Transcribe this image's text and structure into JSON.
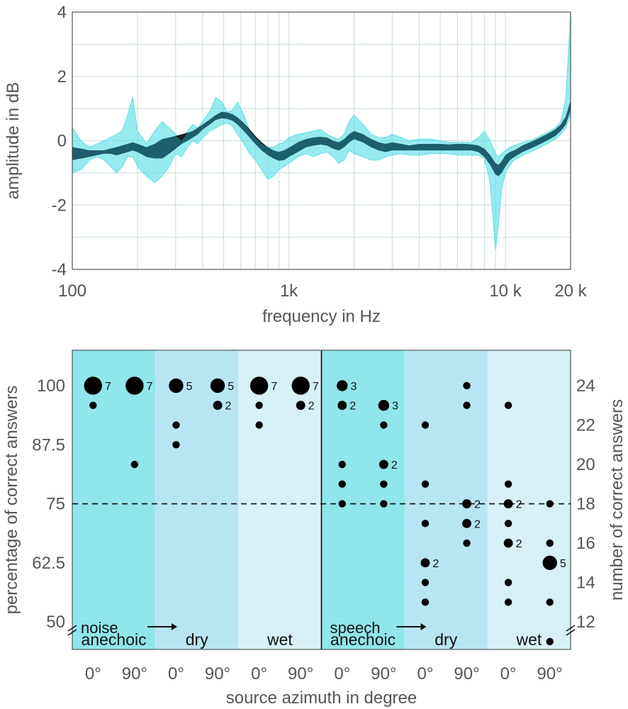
{
  "chart_data": [
    {
      "type": "line",
      "title": "",
      "xlabel": "frequency in Hz",
      "ylabel": "amplitude in dB",
      "xscale": "log",
      "xlim": [
        100,
        20000
      ],
      "ylim": [
        -4,
        4
      ],
      "grid": true,
      "x_ticks": [
        100,
        1000,
        10000,
        20000
      ],
      "x_tick_labels": [
        "100",
        "1k",
        "10 k",
        "20 k"
      ],
      "y_ticks": [
        -4,
        -2,
        0,
        2,
        4
      ],
      "y_tick_labels": [
        "-4",
        "-2",
        "0",
        "2",
        "4"
      ],
      "x": [
        100,
        110,
        120,
        130,
        140,
        150,
        160,
        170,
        180,
        190,
        200,
        220,
        240,
        260,
        280,
        300,
        320,
        340,
        360,
        380,
        400,
        430,
        460,
        490,
        520,
        550,
        580,
        620,
        660,
        700,
        750,
        800,
        850,
        900,
        950,
        1000,
        1100,
        1200,
        1300,
        1400,
        1500,
        1600,
        1700,
        1800,
        1900,
        2000,
        2200,
        2400,
        2600,
        2800,
        3000,
        3300,
        3600,
        4000,
        4500,
        5000,
        5500,
        6000,
        6500,
        7000,
        7500,
        8000,
        8500,
        9000,
        9300,
        9600,
        10000,
        10500,
        11000,
        12000,
        13000,
        14000,
        15000,
        16000,
        17000,
        18000,
        19000,
        20000
      ],
      "series": [
        {
          "color": "#111111",
          "upper": [
            -0.2,
            -0.25,
            -0.3,
            -0.3,
            -0.3,
            -0.25,
            -0.2,
            -0.15,
            -0.1,
            -0.05,
            -0.1,
            -0.2,
            -0.1,
            0.05,
            0.1,
            0.15,
            0.2,
            0.25,
            0.3,
            0.4,
            0.5,
            0.65,
            0.8,
            0.9,
            0.88,
            0.82,
            0.72,
            0.55,
            0.35,
            0.15,
            -0.05,
            -0.2,
            -0.3,
            -0.35,
            -0.3,
            -0.22,
            -0.05,
            0.05,
            0.1,
            0.12,
            0.1,
            0.0,
            -0.05,
            0.05,
            0.2,
            0.3,
            0.2,
            0.05,
            -0.05,
            -0.1,
            -0.05,
            -0.1,
            -0.15,
            -0.1,
            -0.1,
            -0.1,
            -0.12,
            -0.1,
            -0.1,
            -0.12,
            -0.15,
            -0.25,
            -0.45,
            -0.7,
            -0.75,
            -0.65,
            -0.45,
            -0.35,
            -0.3,
            -0.15,
            -0.05,
            0.05,
            0.15,
            0.25,
            0.35,
            0.5,
            0.75,
            1.25
          ],
          "lower": [
            -0.6,
            -0.55,
            -0.5,
            -0.45,
            -0.4,
            -0.4,
            -0.45,
            -0.4,
            -0.35,
            -0.3,
            -0.35,
            -0.5,
            -0.55,
            -0.55,
            -0.4,
            -0.25,
            -0.1,
            0.0,
            0.1,
            0.2,
            0.35,
            0.5,
            0.65,
            0.7,
            0.68,
            0.62,
            0.5,
            0.3,
            0.1,
            -0.1,
            -0.3,
            -0.45,
            -0.55,
            -0.62,
            -0.6,
            -0.5,
            -0.35,
            -0.2,
            -0.15,
            -0.12,
            -0.15,
            -0.25,
            -0.3,
            -0.2,
            -0.05,
            0.05,
            -0.05,
            -0.2,
            -0.3,
            -0.35,
            -0.3,
            -0.3,
            -0.3,
            -0.3,
            -0.3,
            -0.3,
            -0.3,
            -0.3,
            -0.3,
            -0.3,
            -0.35,
            -0.5,
            -0.75,
            -1.05,
            -1.1,
            -1.0,
            -0.8,
            -0.6,
            -0.5,
            -0.35,
            -0.25,
            -0.15,
            -0.05,
            0.05,
            0.15,
            0.3,
            0.5,
            0.95
          ]
        },
        {
          "color": "#5ee0e6",
          "upper": [
            0.4,
            0.0,
            -0.2,
            -0.1,
            0.0,
            0.1,
            0.2,
            0.3,
            0.8,
            1.35,
            0.3,
            -0.1,
            0.3,
            0.6,
            0.4,
            0.2,
            0.0,
            0.3,
            0.5,
            0.4,
            0.6,
            0.9,
            1.35,
            1.2,
            0.9,
            0.95,
            1.2,
            0.8,
            0.3,
            0.1,
            -0.1,
            -0.2,
            -0.2,
            -0.1,
            -0.05,
            0.1,
            0.2,
            0.25,
            0.3,
            0.35,
            0.2,
            0.1,
            0.05,
            0.2,
            0.6,
            0.8,
            0.5,
            0.2,
            0.1,
            0.1,
            0.2,
            0.1,
            0.0,
            0.05,
            0.05,
            0.0,
            -0.05,
            -0.05,
            -0.05,
            -0.05,
            0.1,
            0.3,
            0.0,
            -0.4,
            -0.5,
            -0.4,
            -0.3,
            -0.2,
            -0.15,
            -0.05,
            0.0,
            0.1,
            0.2,
            0.3,
            0.4,
            0.6,
            1.3,
            4.0
          ],
          "lower": [
            -1.0,
            -0.9,
            -0.6,
            -0.5,
            -0.6,
            -0.8,
            -1.0,
            -0.8,
            -0.5,
            -0.5,
            -0.8,
            -1.1,
            -1.3,
            -1.1,
            -0.8,
            -0.4,
            -0.5,
            -0.2,
            0.0,
            -0.1,
            0.1,
            0.3,
            0.4,
            0.5,
            0.55,
            0.45,
            0.2,
            -0.1,
            -0.4,
            -0.6,
            -0.9,
            -1.2,
            -1.1,
            -0.9,
            -0.8,
            -0.7,
            -0.5,
            -0.4,
            -0.5,
            -0.4,
            -0.35,
            -0.5,
            -0.7,
            -0.6,
            -0.3,
            -0.4,
            -0.5,
            -0.6,
            -0.6,
            -0.5,
            -0.45,
            -0.4,
            -0.45,
            -0.45,
            -0.4,
            -0.4,
            -0.4,
            -0.45,
            -0.45,
            -0.45,
            -0.45,
            -0.55,
            -1.3,
            -3.4,
            -2.6,
            -1.5,
            -1.0,
            -0.75,
            -0.6,
            -0.45,
            -0.35,
            -0.25,
            -0.15,
            -0.05,
            0.05,
            0.2,
            0.4,
            0.8
          ]
        }
      ]
    },
    {
      "type": "scatter",
      "title": "",
      "xlabel": "source azimuth in degree",
      "ylabel": "percentage of correct answers",
      "ylabel_right": "number of correct answers",
      "ylim": [
        10.6,
        25.8
      ],
      "y_ticks_left": [
        12,
        15,
        18,
        21,
        24
      ],
      "y_tick_labels_left": [
        "50",
        "62.5",
        "75",
        "87.5",
        "100"
      ],
      "y_ticks_right": [
        12,
        14,
        16,
        18,
        20,
        22,
        24
      ],
      "y_tick_labels_right": [
        "12",
        "14",
        "16",
        "18",
        "20",
        "22",
        "24"
      ],
      "reference_line": 18,
      "categories": [
        "0°",
        "90°",
        "0°",
        "90°",
        "0°",
        "90°",
        "0°",
        "90°",
        "0°",
        "90°",
        "0°",
        "90°"
      ],
      "stimuli": [
        {
          "name": "noise",
          "columns": [
            0,
            5
          ]
        },
        {
          "name": "speech",
          "columns": [
            6,
            11
          ]
        }
      ],
      "conditions": [
        {
          "name": "anechoic",
          "columns": [
            0,
            1
          ],
          "color": "#8fe6ec"
        },
        {
          "name": "dry",
          "columns": [
            2,
            3
          ],
          "color": "#b8e5f3"
        },
        {
          "name": "wet",
          "columns": [
            4,
            5
          ],
          "color": "#d6f1f5"
        },
        {
          "name": "anechoic",
          "columns": [
            6,
            7
          ],
          "color": "#8fe6ec"
        },
        {
          "name": "dry",
          "columns": [
            8,
            9
          ],
          "color": "#b8e5f3"
        },
        {
          "name": "wet",
          "columns": [
            10,
            11
          ],
          "color": "#d6f1f5"
        }
      ],
      "points": [
        {
          "col": 0,
          "y": 24,
          "n": 7
        },
        {
          "col": 0,
          "y": 23,
          "n": 1
        },
        {
          "col": 1,
          "y": 24,
          "n": 7
        },
        {
          "col": 1,
          "y": 20,
          "n": 1
        },
        {
          "col": 2,
          "y": 24,
          "n": 5
        },
        {
          "col": 2,
          "y": 22,
          "n": 1
        },
        {
          "col": 2,
          "y": 21,
          "n": 1
        },
        {
          "col": 3,
          "y": 24,
          "n": 5
        },
        {
          "col": 3,
          "y": 23,
          "n": 2
        },
        {
          "col": 4,
          "y": 24,
          "n": 7
        },
        {
          "col": 4,
          "y": 23,
          "n": 1
        },
        {
          "col": 4,
          "y": 22,
          "n": 1
        },
        {
          "col": 5,
          "y": 24,
          "n": 7
        },
        {
          "col": 5,
          "y": 23,
          "n": 2
        },
        {
          "col": 6,
          "y": 24,
          "n": 3
        },
        {
          "col": 6,
          "y": 23,
          "n": 2
        },
        {
          "col": 6,
          "y": 20,
          "n": 1
        },
        {
          "col": 6,
          "y": 19,
          "n": 1
        },
        {
          "col": 6,
          "y": 18,
          "n": 1
        },
        {
          "col": 7,
          "y": 23,
          "n": 3
        },
        {
          "col": 7,
          "y": 22,
          "n": 1
        },
        {
          "col": 7,
          "y": 20,
          "n": 2
        },
        {
          "col": 7,
          "y": 19,
          "n": 1
        },
        {
          "col": 7,
          "y": 18,
          "n": 1
        },
        {
          "col": 8,
          "y": 22,
          "n": 1
        },
        {
          "col": 8,
          "y": 19,
          "n": 1
        },
        {
          "col": 8,
          "y": 17,
          "n": 1
        },
        {
          "col": 8,
          "y": 15,
          "n": 2
        },
        {
          "col": 8,
          "y": 14,
          "n": 1
        },
        {
          "col": 8,
          "y": 13,
          "n": 1
        },
        {
          "col": 9,
          "y": 24,
          "n": 1
        },
        {
          "col": 9,
          "y": 23,
          "n": 1
        },
        {
          "col": 9,
          "y": 18,
          "n": 2
        },
        {
          "col": 9,
          "y": 17,
          "n": 2
        },
        {
          "col": 9,
          "y": 16,
          "n": 1
        },
        {
          "col": 10,
          "y": 23,
          "n": 1
        },
        {
          "col": 10,
          "y": 19,
          "n": 1
        },
        {
          "col": 10,
          "y": 18,
          "n": 2
        },
        {
          "col": 10,
          "y": 17,
          "n": 1
        },
        {
          "col": 10,
          "y": 16,
          "n": 2
        },
        {
          "col": 10,
          "y": 14,
          "n": 1
        },
        {
          "col": 10,
          "y": 13,
          "n": 1
        },
        {
          "col": 11,
          "y": 18,
          "n": 1
        },
        {
          "col": 11,
          "y": 16,
          "n": 1
        },
        {
          "col": 11,
          "y": 15,
          "n": 5
        },
        {
          "col": 11,
          "y": 13,
          "n": 1
        },
        {
          "col": 11,
          "y": 11,
          "n": 1
        }
      ]
    }
  ]
}
